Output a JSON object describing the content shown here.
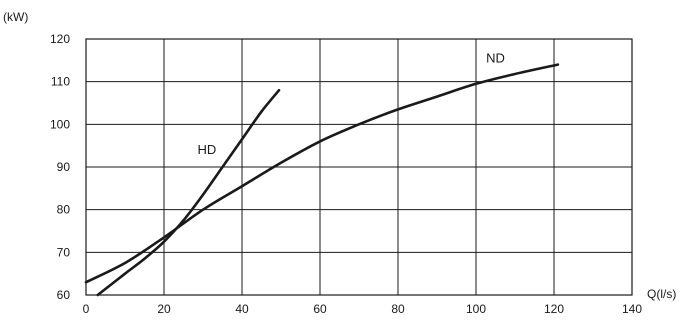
{
  "chart_data": {
    "type": "line",
    "title": "",
    "xlabel": "Q(l/s)",
    "ylabel": "(kW)",
    "xlim": [
      0,
      140
    ],
    "ylim": [
      60,
      120
    ],
    "x_ticks": [
      0,
      20,
      40,
      60,
      80,
      100,
      120,
      140
    ],
    "y_ticks": [
      60,
      70,
      80,
      90,
      100,
      110,
      120
    ],
    "grid": true,
    "legend": "none",
    "line_color": "#1a1a1a",
    "series": [
      {
        "name": "HD",
        "x": [
          3,
          10,
          15,
          20,
          25,
          30,
          35,
          40,
          45,
          49.5
        ],
        "y": [
          60,
          65,
          68.5,
          72.5,
          77.5,
          83.5,
          90,
          96.5,
          103,
          108
        ]
      },
      {
        "name": "ND",
        "x": [
          0,
          10,
          20,
          30,
          40,
          50,
          60,
          70,
          80,
          90,
          100,
          110,
          121
        ],
        "y": [
          63,
          67.5,
          73.5,
          80,
          85.5,
          91,
          96,
          100,
          103.5,
          106.5,
          109.5,
          111.8,
          114
        ]
      }
    ]
  }
}
